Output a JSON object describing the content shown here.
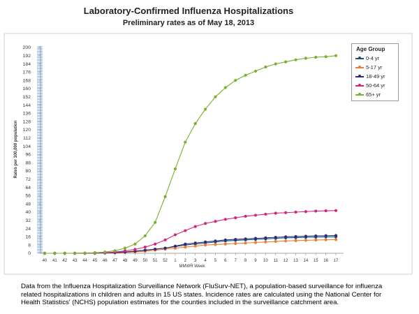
{
  "chart_data": {
    "type": "line",
    "title": "Laboratory-Confirmed Influenza Hospitalizations",
    "subtitle": "Preliminary rates as of May 18, 2013",
    "xlabel": "MMWR Week",
    "ylabel": "Rates per 100,000 population",
    "ylim": [
      0,
      200
    ],
    "yticks": [
      0,
      8,
      16,
      24,
      32,
      40,
      48,
      56,
      64,
      72,
      80,
      88,
      96,
      104,
      112,
      120,
      128,
      136,
      144,
      152,
      160,
      168,
      176,
      184,
      192,
      200
    ],
    "grid": false,
    "legend_title": "Age Group",
    "legend_position": "right",
    "categories": [
      "40",
      "41",
      "42",
      "43",
      "44",
      "45",
      "46",
      "47",
      "48",
      "49",
      "50",
      "51",
      "52",
      "1",
      "2",
      "3",
      "4",
      "5",
      "6",
      "7",
      "8",
      "9",
      "10",
      "11",
      "12",
      "13",
      "14",
      "15",
      "16",
      "17"
    ],
    "series": [
      {
        "name": "0-4 yr",
        "color": "#1f4e79",
        "values": [
          0,
          0,
          0,
          0,
          0.1,
          0.2,
          0.4,
          0.7,
          1.2,
          2,
          3,
          4,
          5,
          6.5,
          8,
          9,
          10,
          11,
          12,
          12.5,
          13,
          13.5,
          14,
          14.5,
          15,
          15.2,
          15.5,
          15.7,
          15.9,
          16
        ]
      },
      {
        "name": "5-17 yr",
        "color": "#ed7d31",
        "values": [
          0,
          0,
          0,
          0,
          0.1,
          0.2,
          0.3,
          0.5,
          0.8,
          1.3,
          2,
          3,
          4,
          5,
          6,
          7,
          8,
          8.5,
          9,
          9.5,
          10,
          10.5,
          11,
          11.5,
          12,
          12.3,
          12.6,
          12.9,
          13.1,
          13.3
        ]
      },
      {
        "name": "18-49 yr",
        "color": "#2e2b7c",
        "values": [
          0,
          0,
          0,
          0,
          0.1,
          0.2,
          0.4,
          0.7,
          1.2,
          2,
          3,
          4,
          5,
          7,
          9,
          10,
          11,
          12,
          13,
          13.5,
          14,
          14.5,
          15,
          15.5,
          16,
          16.3,
          16.6,
          16.9,
          17.1,
          17.3
        ]
      },
      {
        "name": "50-64 yr",
        "color": "#d6247a",
        "values": [
          0,
          0,
          0,
          0,
          0.1,
          0.3,
          0.6,
          1.2,
          2.3,
          3.8,
          6,
          9,
          13,
          18,
          22,
          26,
          29,
          31,
          33,
          34.5,
          36,
          37,
          38,
          39,
          39.5,
          40,
          40.5,
          41,
          41.3,
          41.5
        ]
      },
      {
        "name": "65+ yr",
        "color": "#7ab030",
        "values": [
          0,
          0,
          0,
          0.1,
          0.3,
          0.6,
          1.2,
          2.5,
          5,
          9,
          17,
          30,
          55,
          82,
          108,
          126,
          140,
          152,
          161,
          168,
          173,
          177,
          181,
          184,
          186,
          188,
          189.5,
          190.5,
          191,
          192
        ]
      }
    ]
  },
  "caption": "Data from the Influenza Hospitalization Surveillance Network (FluSurv-NET), a population-based surveillance for influenza related hospitalizations in children and adults in 15 US states.  Incidence rates are calculated using the National Center for Health Statistics' (NCHS) population estimates for the counties included in the surveillance catchment area."
}
